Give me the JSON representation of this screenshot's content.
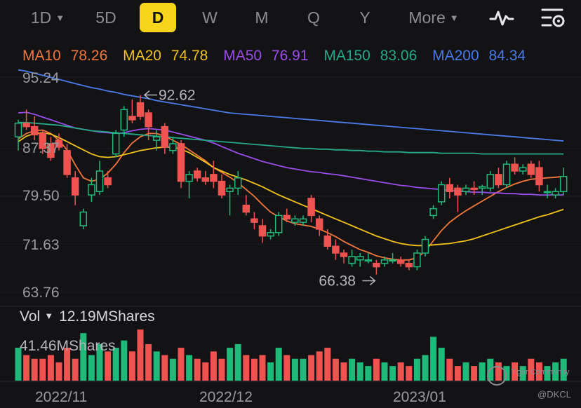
{
  "tabs": [
    {
      "label": "1D",
      "caret": true
    },
    {
      "label": "5D",
      "caret": false
    },
    {
      "label": "D",
      "caret": false,
      "active": true
    },
    {
      "label": "W",
      "caret": false
    },
    {
      "label": "M",
      "caret": false
    },
    {
      "label": "Q",
      "caret": false
    },
    {
      "label": "Y",
      "caret": false
    },
    {
      "label": "More",
      "caret": true
    }
  ],
  "tools": {
    "indicator_icon": "pulse-line-icon",
    "settings_icon": "chart-settings-icon"
  },
  "ma": [
    {
      "label": "MA10",
      "value": "78.26",
      "color": "#f2773a"
    },
    {
      "label": "MA20",
      "value": "74.78",
      "color": "#f2c21c"
    },
    {
      "label": "MA50",
      "value": "76.91",
      "color": "#9b4de8"
    },
    {
      "label": "MA150",
      "value": "83.06",
      "color": "#25a98a"
    },
    {
      "label": "MA200",
      "value": "84.34",
      "color": "#4a7be8"
    }
  ],
  "volume": {
    "label": "Vol",
    "current": "12.19MShares",
    "max": "41.46MShares"
  },
  "watermark": {
    "brand": "Tiger Community",
    "handle": "@DKCL"
  },
  "chart_data": {
    "type": "candlestick",
    "y_ticks": [
      "95.24",
      "87.37",
      "79.50",
      "71.63",
      "63.76"
    ],
    "ylim": [
      63.76,
      95.24
    ],
    "x_ticks": [
      "2022/11",
      "2022/12",
      "2023/01"
    ],
    "annotations": [
      {
        "text": "92.62",
        "value": 92.62,
        "type": "high"
      },
      {
        "text": "66.38",
        "value": 66.38,
        "type": "low"
      }
    ],
    "colors": {
      "up": "#1fb97a",
      "down": "#ef5350"
    },
    "candles": [
      [
        86.5,
        89.0,
        84.5,
        88.5
      ],
      [
        88.5,
        90.5,
        87.5,
        88.0
      ],
      [
        88.0,
        89.5,
        86.0,
        86.8
      ],
      [
        87.0,
        87.5,
        84.0,
        84.8
      ],
      [
        85.5,
        86.5,
        83.0,
        83.5
      ],
      [
        86.0,
        87.0,
        84.5,
        85.0
      ],
      [
        84.5,
        85.5,
        80.5,
        81.0
      ],
      [
        80.5,
        81.5,
        76.5,
        78.0
      ],
      [
        73.5,
        76.0,
        73.0,
        75.5
      ],
      [
        78.0,
        80.5,
        77.0,
        79.5
      ],
      [
        78.5,
        83.0,
        78.0,
        81.5
      ],
      [
        80.5,
        81.5,
        79.0,
        79.5
      ],
      [
        84.0,
        87.5,
        83.5,
        87.0
      ],
      [
        87.5,
        91.0,
        86.5,
        90.5
      ],
      [
        89.5,
        92.0,
        88.5,
        89.0
      ],
      [
        91.5,
        92.62,
        89.0,
        89.5
      ],
      [
        90.0,
        90.5,
        86.0,
        88.0
      ],
      [
        86.0,
        87.5,
        84.5,
        86.5
      ],
      [
        88.0,
        88.5,
        84.0,
        85.0
      ],
      [
        84.5,
        86.5,
        84.0,
        85.5
      ],
      [
        85.5,
        86.0,
        79.0,
        80.0
      ],
      [
        80.0,
        81.5,
        77.5,
        81.0
      ],
      [
        81.5,
        82.0,
        80.0,
        80.5
      ],
      [
        80.5,
        81.5,
        79.5,
        80.0
      ],
      [
        81.0,
        83.0,
        79.0,
        80.0
      ],
      [
        80.0,
        81.0,
        77.5,
        78.0
      ],
      [
        78.5,
        79.5,
        75.0,
        79.0
      ],
      [
        79.0,
        81.5,
        78.0,
        80.5
      ],
      [
        76.5,
        78.0,
        75.0,
        75.5
      ],
      [
        74.5,
        75.5,
        73.0,
        74.0
      ],
      [
        73.5,
        74.5,
        71.0,
        72.0
      ],
      [
        72.0,
        73.0,
        71.5,
        72.5
      ],
      [
        72.5,
        75.5,
        72.0,
        75.0
      ],
      [
        75.0,
        76.0,
        74.0,
        74.5
      ],
      [
        74.0,
        75.0,
        73.5,
        74.5
      ],
      [
        74.0,
        75.0,
        73.5,
        74.5
      ],
      [
        77.5,
        78.0,
        74.0,
        75.0
      ],
      [
        74.5,
        75.0,
        72.0,
        73.0
      ],
      [
        72.0,
        73.0,
        70.0,
        70.5
      ],
      [
        70.5,
        71.5,
        68.5,
        69.5
      ],
      [
        69.5,
        70.0,
        68.0,
        69.0
      ],
      [
        68.0,
        70.0,
        67.5,
        69.0
      ],
      [
        68.5,
        69.5,
        67.5,
        69.0
      ],
      [
        68.5,
        69.5,
        68.0,
        68.5
      ],
      [
        68.0,
        68.5,
        66.38,
        67.5
      ],
      [
        68.0,
        69.0,
        67.5,
        68.5
      ],
      [
        68.5,
        69.5,
        68.0,
        68.5
      ],
      [
        68.5,
        69.0,
        67.5,
        68.0
      ],
      [
        68.0,
        68.5,
        67.0,
        67.5
      ],
      [
        67.5,
        70.0,
        67.0,
        69.5
      ],
      [
        69.5,
        72.0,
        69.0,
        71.5
      ],
      [
        75.0,
        76.5,
        74.5,
        76.0
      ],
      [
        77.0,
        80.0,
        76.5,
        79.5
      ],
      [
        79.5,
        80.5,
        77.5,
        78.5
      ],
      [
        79.0,
        79.5,
        75.5,
        78.0
      ],
      [
        78.5,
        79.5,
        78.0,
        79.0
      ],
      [
        79.0,
        80.0,
        78.0,
        78.8
      ],
      [
        79.0,
        79.5,
        78.0,
        79.2
      ],
      [
        79.0,
        81.5,
        78.5,
        81.0
      ],
      [
        81.0,
        82.0,
        79.0,
        79.5
      ],
      [
        79.5,
        83.0,
        79.0,
        82.5
      ],
      [
        82.5,
        83.5,
        81.0,
        81.5
      ],
      [
        81.5,
        82.5,
        81.0,
        82.0
      ],
      [
        82.5,
        83.0,
        80.5,
        81.0
      ],
      [
        82.0,
        83.0,
        78.5,
        79.5
      ],
      [
        78.5,
        79.5,
        77.5,
        78.5
      ],
      [
        78.0,
        79.0,
        77.5,
        78.5
      ],
      [
        78.5,
        82.0,
        78.0,
        80.7
      ]
    ],
    "volumes": [
      9,
      7,
      6,
      6,
      7,
      5,
      9,
      6,
      13,
      7,
      10,
      8,
      9,
      11,
      8,
      14,
      10,
      8,
      7,
      6,
      9,
      7,
      6,
      5,
      8,
      6,
      9,
      10,
      7,
      6,
      7,
      5,
      9,
      7,
      6,
      6,
      7,
      8,
      9,
      6,
      5,
      6,
      5,
      4,
      6,
      5,
      4,
      5,
      4,
      6,
      7,
      12,
      9,
      6,
      4,
      5,
      4,
      5,
      6,
      5,
      4,
      5,
      4,
      6,
      5,
      4,
      5,
      6
    ],
    "vol_max": 41.46,
    "ma_lines": [
      {
        "name": "MA10",
        "color": "#f2773a",
        "values": [
          86.2,
          87.0,
          87.4,
          87.5,
          87.0,
          86.0,
          84.6,
          82.4,
          80.5,
          80.0,
          80.3,
          81.2,
          82.5,
          84.2,
          85.6,
          86.5,
          87.0,
          87.0,
          86.6,
          86.0,
          85.4,
          84.6,
          83.8,
          83.0,
          82.0,
          81.3,
          80.6,
          79.8,
          78.8,
          77.8,
          76.6,
          75.5,
          74.8,
          74.2,
          73.8,
          73.6,
          73.4,
          73.0,
          72.5,
          71.9,
          71.2,
          70.6,
          70.0,
          69.6,
          69.1,
          68.8,
          68.6,
          68.5,
          68.5,
          68.8,
          69.8,
          71.3,
          72.8,
          74.0,
          74.9,
          75.7,
          76.4,
          77.1,
          77.8,
          78.5,
          79.1,
          79.6,
          80.0,
          80.3,
          80.4,
          80.5,
          80.6,
          80.7
        ]
      },
      {
        "name": "MA20",
        "color": "#f2c21c",
        "values": [
          85.8,
          86.6,
          87.0,
          87.1,
          86.9,
          86.4,
          85.8,
          85.2,
          84.6,
          84.0,
          83.6,
          83.5,
          83.6,
          83.9,
          84.2,
          84.5,
          84.7,
          84.9,
          85.0,
          85.0,
          84.7,
          84.2,
          83.5,
          82.8,
          82.0,
          81.5,
          81.0,
          80.6,
          80.2,
          79.7,
          79.2,
          78.6,
          78.0,
          77.5,
          77.0,
          76.5,
          76.0,
          75.5,
          75.0,
          74.5,
          74.0,
          73.5,
          73.0,
          72.5,
          72.0,
          71.6,
          71.2,
          70.9,
          70.7,
          70.6,
          70.6,
          70.7,
          70.8,
          70.9,
          71.1,
          71.3,
          71.6,
          72.0,
          72.4,
          72.8,
          73.2,
          73.6,
          74.0,
          74.4,
          74.8,
          75.1,
          75.5,
          75.9
        ]
      },
      {
        "name": "MA50",
        "color": "#9b4de8",
        "values": [
          90.0,
          90.1,
          89.8,
          89.4,
          89.0,
          88.6,
          88.2,
          87.8,
          87.6,
          87.4,
          87.2,
          87.1,
          87.0,
          87.1,
          87.4,
          87.6,
          87.7,
          87.6,
          87.5,
          87.2,
          86.9,
          86.6,
          86.3,
          86.0,
          85.6,
          85.1,
          84.6,
          84.1,
          83.7,
          83.3,
          82.9,
          82.6,
          82.3,
          82.0,
          81.8,
          81.6,
          81.4,
          81.3,
          81.1,
          81.0,
          80.8,
          80.6,
          80.4,
          80.2,
          80.0,
          79.8,
          79.6,
          79.4,
          79.3,
          79.1,
          79.0,
          78.9,
          78.8,
          78.7,
          78.6,
          78.5,
          78.4,
          78.4,
          78.3,
          78.3,
          78.2,
          78.2,
          78.1,
          78.1,
          78.0,
          78.0,
          78.0,
          78.0
        ]
      },
      {
        "name": "MA150",
        "color": "#25a98a",
        "values": [
          88.6,
          88.6,
          88.5,
          88.4,
          88.3,
          88.2,
          88.0,
          87.8,
          87.6,
          87.4,
          87.3,
          87.2,
          87.1,
          87.0,
          86.9,
          86.8,
          86.7,
          86.6,
          86.5,
          86.4,
          86.3,
          86.2,
          86.1,
          86.0,
          85.9,
          85.8,
          85.7,
          85.6,
          85.5,
          85.4,
          85.3,
          85.2,
          85.1,
          85.0,
          84.9,
          84.8,
          84.8,
          84.7,
          84.7,
          84.6,
          84.6,
          84.5,
          84.5,
          84.4,
          84.4,
          84.3,
          84.3,
          84.3,
          84.2,
          84.2,
          84.2,
          84.2,
          84.1,
          84.1,
          84.1,
          84.1,
          84.1,
          84.0,
          84.0,
          84.0,
          84.0,
          84.0,
          84.0,
          84.0,
          84.0,
          84.0,
          84.0,
          84.0
        ]
      },
      {
        "name": "MA200",
        "color": "#4a7be8",
        "values": [
          96.3,
          96.1,
          95.8,
          95.5,
          95.2,
          94.9,
          94.6,
          94.3,
          94.0,
          93.7,
          93.5,
          93.2,
          93.0,
          92.7,
          92.5,
          92.3,
          92.1,
          91.8,
          91.6,
          91.4,
          91.2,
          91.0,
          90.8,
          90.6,
          90.4,
          90.2,
          90.0,
          89.9,
          89.8,
          89.7,
          89.6,
          89.5,
          89.4,
          89.3,
          89.2,
          89.1,
          89.0,
          88.9,
          88.8,
          88.7,
          88.6,
          88.5,
          88.4,
          88.3,
          88.2,
          88.1,
          88.0,
          87.9,
          87.8,
          87.7,
          87.6,
          87.5,
          87.4,
          87.3,
          87.2,
          87.1,
          87.0,
          86.9,
          86.8,
          86.7,
          86.6,
          86.5,
          86.4,
          86.3,
          86.2,
          86.1,
          86.0,
          85.9
        ]
      }
    ]
  }
}
